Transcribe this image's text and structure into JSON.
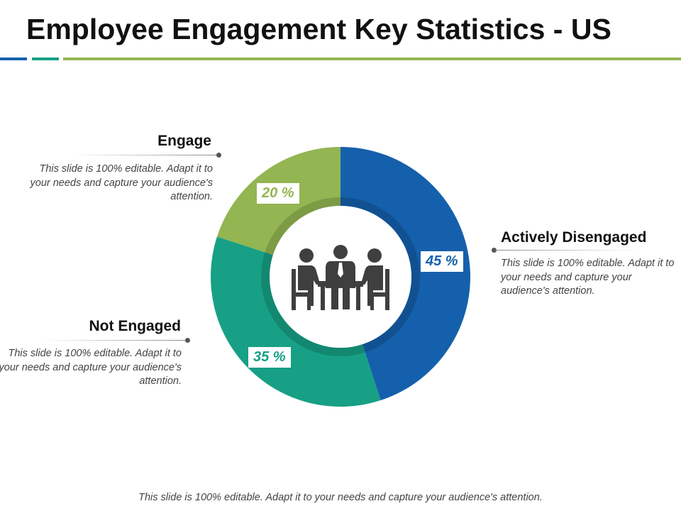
{
  "title": "Employee Engagement Key Statistics - US",
  "colors": {
    "blue": "#1560ac",
    "teal": "#17a085",
    "green": "#93b552",
    "icon": "#3f3f3f"
  },
  "chart_data": {
    "type": "pie",
    "donut": true,
    "slices": [
      {
        "label": "Actively Disengaged",
        "value": 45,
        "value_label": "45 %",
        "color": "#1560ac"
      },
      {
        "label": "Not Engaged",
        "value": 35,
        "value_label": "35 %",
        "color": "#17a085"
      },
      {
        "label": "Engage",
        "value": 20,
        "value_label": "20 %",
        "color": "#93b552"
      }
    ],
    "center_icon": "meeting-people-icon"
  },
  "callouts": {
    "engage": {
      "title": "Engage",
      "text": "This slide is 100% editable. Adapt it to your needs and capture your audience's attention."
    },
    "disengaged": {
      "title": "Actively Disengaged",
      "text": "This slide is 100% editable. Adapt it to your needs and capture your audience's attention."
    },
    "not_engaged": {
      "title": "Not Engaged",
      "text": "This slide is 100% editable. Adapt it to your needs and capture your audience's attention."
    }
  },
  "footer": "This slide is 100% editable. Adapt it to your needs and capture your audience's attention."
}
